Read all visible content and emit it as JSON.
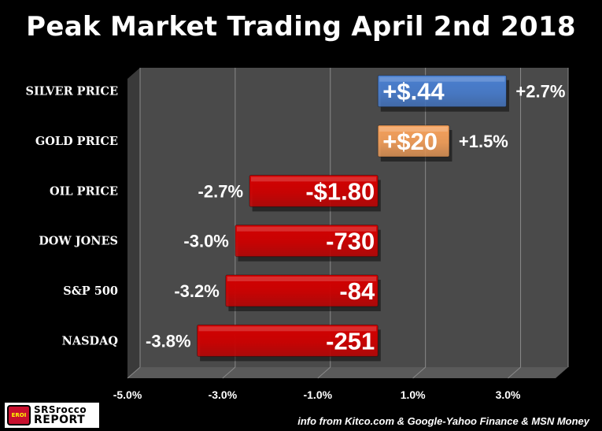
{
  "title": "Peak Market Trading April 2nd 2018",
  "source": "info from Kitco.com & Google-Yahoo Finance & MSN Money",
  "logo": {
    "line1": "SRSrocco",
    "line2": "REPORT",
    "mark": "EROI"
  },
  "colors": {
    "background": "#000000",
    "plot_area": "#4a4a4a",
    "silver_bar": "#4a7fd0",
    "gold_bar": "#f5a15c",
    "negative_bar": "#d40000",
    "gridline": "#8a8a8a"
  },
  "chart_data": {
    "type": "bar",
    "orientation": "horizontal",
    "title": "Peak Market Trading April 2nd 2018",
    "categories": [
      "SILVER PRICE",
      "GOLD PRICE",
      "OIL PRICE",
      "DOW JONES",
      "S&P 500",
      "NASDAQ"
    ],
    "values": [
      2.7,
      1.5,
      -2.7,
      -3.0,
      -3.2,
      -3.8
    ],
    "value_labels": [
      "+$.44",
      "+$20",
      "-$1.80",
      "-730",
      "-84",
      "-251"
    ],
    "percent_labels": [
      "+2.7%",
      "+1.5%",
      "-2.7%",
      "-3.0%",
      "-3.2%",
      "-3.8%"
    ],
    "bar_colors": [
      "#4a7fd0",
      "#f5a15c",
      "#d40000",
      "#d40000",
      "#d40000",
      "#d40000"
    ],
    "xlim": [
      -5.0,
      4.0
    ],
    "xticks": [
      -5.0,
      -3.0,
      -1.0,
      1.0,
      3.0
    ],
    "xtick_labels": [
      "-5.0%",
      "-3.0%",
      "-1.0%",
      "1.0%",
      "3.0%"
    ],
    "grid": true,
    "legend": "none"
  }
}
